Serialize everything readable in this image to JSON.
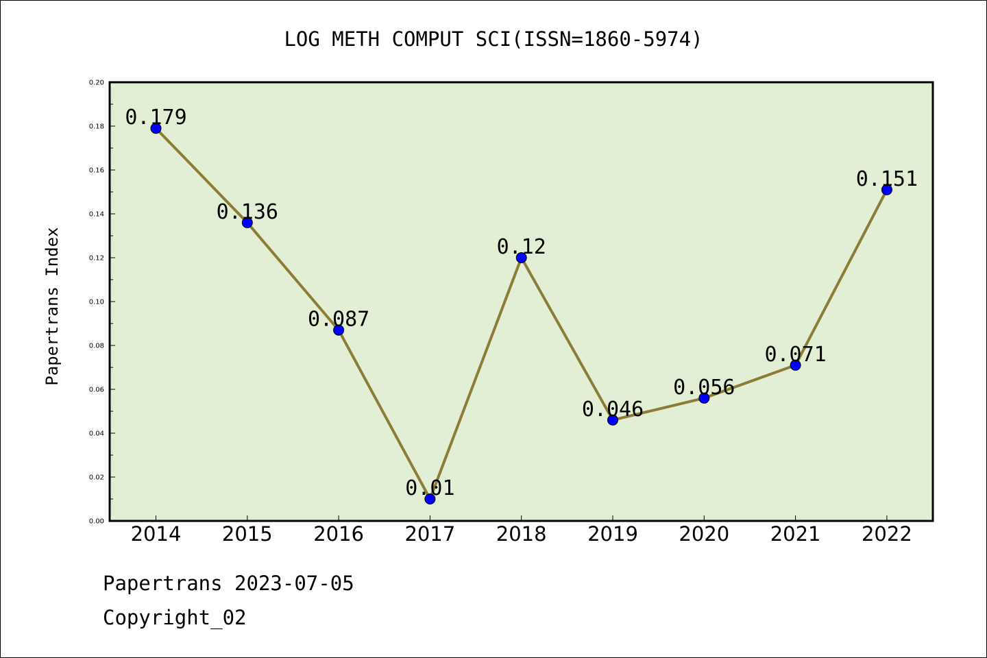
{
  "chart_data": {
    "type": "line",
    "title": "LOG METH COMPUT SCI(ISSN=1860-5974)",
    "xlabel": "",
    "ylabel": "Papertrans Index",
    "categories": [
      "2014",
      "2015",
      "2016",
      "2017",
      "2018",
      "2019",
      "2020",
      "2021",
      "2022"
    ],
    "series": [
      {
        "values": [
          0.179,
          0.136,
          0.087,
          0.01,
          0.12,
          0.046,
          0.056,
          0.071,
          0.151
        ],
        "labels": [
          "0.179",
          "0.136",
          "0.087",
          "0.01",
          "0.12",
          "0.046",
          "0.056",
          "0.071",
          "0.151"
        ]
      }
    ],
    "ylim": [
      0,
      0.2
    ],
    "yticks": [
      "0.00",
      "0.02",
      "0.04",
      "0.06",
      "0.08",
      "0.10",
      "0.12",
      "0.14",
      "0.16",
      "0.18",
      "0.20"
    ],
    "grid": false,
    "colors": {
      "plot_background": "#e2efd5",
      "line": "#8b7d36",
      "marker": "#0000ff"
    }
  },
  "footer": {
    "date_text": "Papertrans 2023-07-05",
    "copyright_text": "Copyright_02"
  }
}
